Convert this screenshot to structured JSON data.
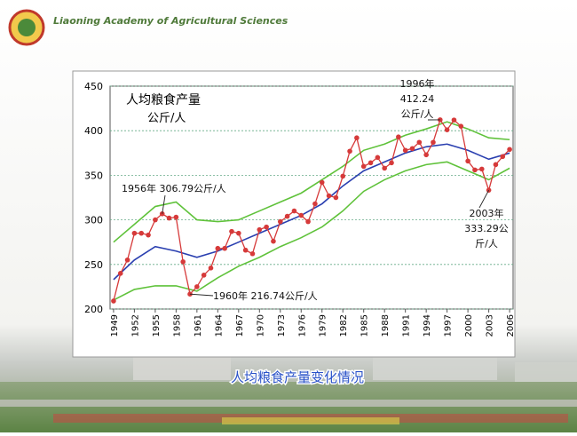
{
  "header": {
    "org": "Liaoning Academy of Agricultural Sciences"
  },
  "caption": "人均粮食产量变化情况",
  "chart_data": {
    "type": "line",
    "title": "人均粮食产量",
    "y_unit": "公斤/人",
    "xlim": [
      1948.5,
      2006.5
    ],
    "xticks": [
      1949,
      1952,
      1955,
      1958,
      1961,
      1964,
      1967,
      1970,
      1973,
      1976,
      1979,
      1982,
      1985,
      1988,
      1991,
      1994,
      1997,
      2000,
      2003,
      2006
    ],
    "ylim": [
      200,
      450
    ],
    "yticks": [
      200,
      250,
      300,
      350,
      400,
      450
    ],
    "grid": true,
    "series": [
      {
        "color": "#d63a3a",
        "markers": true,
        "x": [
          1949,
          1950,
          1951,
          1952,
          1953,
          1954,
          1955,
          1956,
          1957,
          1958,
          1959,
          1960,
          1961,
          1962,
          1963,
          1964,
          1965,
          1966,
          1967,
          1968,
          1969,
          1970,
          1971,
          1972,
          1973,
          1974,
          1975,
          1976,
          1977,
          1978,
          1979,
          1980,
          1981,
          1982,
          1983,
          1984,
          1985,
          1986,
          1987,
          1988,
          1989,
          1990,
          1991,
          1992,
          1993,
          1994,
          1995,
          1996,
          1997,
          1998,
          1999,
          2000,
          2001,
          2002,
          2003,
          2004,
          2005,
          2006
        ],
        "values": [
          209,
          240,
          255,
          285,
          285,
          283,
          300,
          306.79,
          302,
          303,
          253,
          216.74,
          225,
          238,
          246,
          268,
          268,
          287,
          285,
          266,
          262,
          289,
          292,
          276,
          298,
          304,
          310,
          305,
          298,
          318,
          342,
          327,
          325,
          349,
          377,
          392,
          360,
          364,
          370,
          358,
          364,
          393,
          378,
          380,
          387,
          373,
          387,
          412.24,
          401,
          412,
          405,
          366,
          356,
          357,
          333.29,
          362,
          371,
          379
        ]
      },
      {
        "color": "#2a3fb0",
        "markers": false,
        "x": [
          1949,
          1952,
          1955,
          1958,
          1961,
          1964,
          1967,
          1970,
          1973,
          1976,
          1979,
          1982,
          1985,
          1988,
          1991,
          1994,
          1997,
          2000,
          2003,
          2006
        ],
        "values": [
          233,
          255,
          270,
          265,
          258,
          265,
          275,
          285,
          295,
          305,
          318,
          338,
          355,
          365,
          375,
          382,
          385,
          378,
          368,
          375
        ]
      },
      {
        "color": "#5fc23a",
        "markers": false,
        "x": [
          1949,
          1952,
          1955,
          1958,
          1961,
          1964,
          1967,
          1970,
          1973,
          1976,
          1979,
          1982,
          1985,
          1988,
          1991,
          1994,
          1997,
          2000,
          2003,
          2006
        ],
        "values": [
          275,
          295,
          315,
          320,
          300,
          298,
          300,
          310,
          320,
          330,
          345,
          360,
          378,
          385,
          395,
          402,
          410,
          402,
          392,
          390
        ]
      },
      {
        "color": "#5fc23a",
        "markers": false,
        "x": [
          1949,
          1952,
          1955,
          1958,
          1961,
          1964,
          1967,
          1970,
          1973,
          1976,
          1979,
          1982,
          1985,
          1988,
          1991,
          1994,
          1997,
          2000,
          2003,
          2006
        ],
        "values": [
          210,
          222,
          226,
          226,
          220,
          235,
          248,
          258,
          270,
          280,
          292,
          310,
          332,
          345,
          355,
          362,
          365,
          355,
          345,
          358
        ]
      }
    ],
    "annotations": [
      {
        "lines": [
          "1956年 306.79公斤/人"
        ]
      },
      {
        "lines": [
          "1960年 216.74公斤/人"
        ]
      },
      {
        "lines": [
          "1996年",
          "412.24",
          "公斤/人"
        ]
      },
      {
        "lines": [
          "2003年",
          "333.29公",
          "斤/人"
        ]
      }
    ]
  }
}
